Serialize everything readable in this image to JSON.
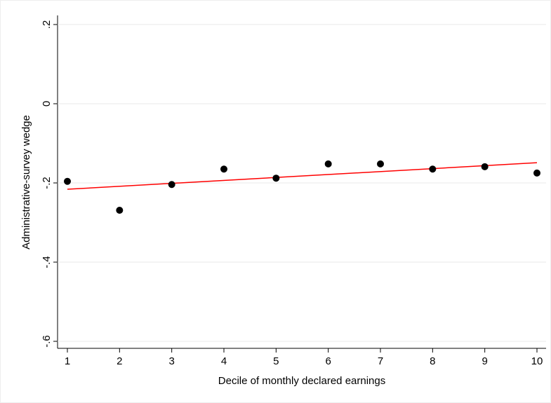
{
  "chart_data": {
    "type": "scatter",
    "x_label": "Decile of monthly declared earnings",
    "y_label": "Administrative-survey wedge",
    "x": [
      1,
      2,
      3,
      4,
      5,
      6,
      7,
      8,
      9,
      10
    ],
    "values": [
      -0.196,
      -0.269,
      -0.204,
      -0.165,
      -0.188,
      -0.152,
      -0.152,
      -0.165,
      -0.159,
      -0.175
    ],
    "color": "#000000",
    "fit": {
      "x": [
        1,
        10
      ],
      "values": [
        -0.216,
        -0.149
      ],
      "color": "#ff0000"
    },
    "xlim": [
      1,
      10
    ],
    "xticks": [
      1,
      2,
      3,
      4,
      5,
      6,
      7,
      8,
      9,
      10
    ],
    "ylim": [
      -0.6,
      0.2
    ],
    "yticks": [
      {
        "value": -0.6,
        "label": "-.6"
      },
      {
        "value": -0.4,
        "label": "-.4"
      },
      {
        "value": -0.2,
        "label": "-.2"
      },
      0,
      {
        "value": 0.2,
        "label": ".2"
      }
    ],
    "grid": true
  }
}
